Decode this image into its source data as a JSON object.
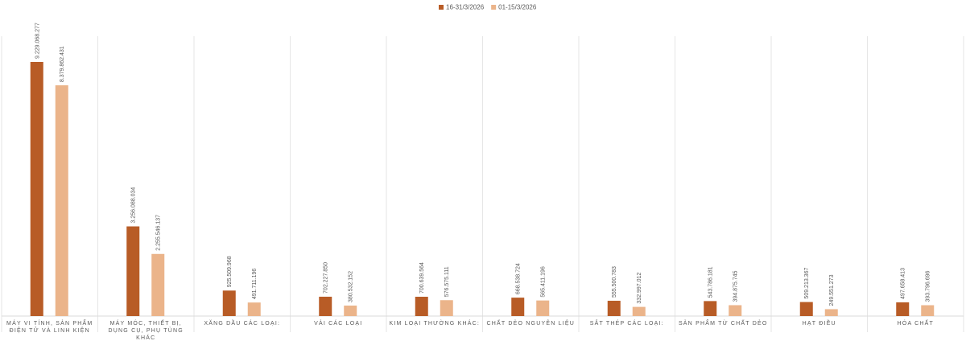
{
  "chart_data": {
    "type": "bar",
    "categories": [
      "MÁY VI TÍNH, SẢN PHẨM ĐIỆN TỬ VÀ LINH KIỆN",
      "MÁY MÓC, THIẾT BỊ, DỤNG CỤ, PHỤ TÙNG KHÁC",
      "XĂNG DẦU CÁC LOẠI:",
      "VẢI CÁC LOẠI",
      "KIM LOẠI THƯỜNG KHÁC:",
      "CHẤT DẺO NGUYÊN LIỆU",
      "SẮT THÉP CÁC LOẠI:",
      "SẢN PHẨM TỪ CHẤT DẺO",
      "HẠT ĐIỀU",
      "HÓA CHẤT"
    ],
    "series": [
      {
        "name": "16-31/3/2026",
        "color": "#b85c26",
        "values": [
          9229068277,
          3256088034,
          925509968,
          702227850,
          700639564,
          668538724,
          555500783,
          543786181,
          509213367,
          497658413
        ],
        "value_labels": [
          "9.229.068.277",
          "3.256.088.034",
          "925.509.968",
          "702.227.850",
          "700.639.564",
          "668.538.724",
          "555.500.783",
          "543.786.181",
          "509.213.367",
          "497.658.413"
        ]
      },
      {
        "name": "01-15/3/2026",
        "color": "#ebb48a",
        "values": [
          8379862431,
          2255546137,
          491711196,
          380532152,
          576575111,
          565411196,
          332997012,
          394875745,
          249551273,
          393796696
        ],
        "value_labels": [
          "8.379.862.431",
          "2.255.546.137",
          "491.711.196",
          "380.532.152",
          "576.575.111",
          "565.411.196",
          "332.997.012",
          "394.875.745",
          "249.551.273",
          "393.796.696"
        ]
      }
    ],
    "legend": "top"
  }
}
